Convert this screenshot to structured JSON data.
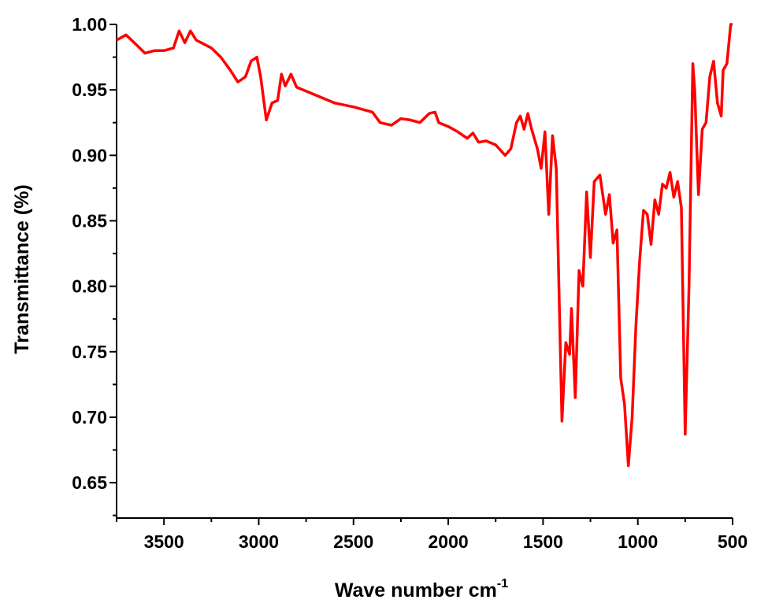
{
  "chart_data": {
    "type": "line",
    "xlabel": "Wave number cm",
    "xlabel_superscript": "-1",
    "ylabel": "Transmittance (%)",
    "color": "#ff0000",
    "xlim": [
      3750,
      500
    ],
    "ylim": [
      0.623,
      1.0
    ],
    "xticks": [
      3500,
      3000,
      2500,
      2000,
      1500,
      1000,
      500
    ],
    "xticks_minor": [
      3750,
      3250,
      2750,
      2250,
      1750,
      1250,
      750
    ],
    "yticks": [
      {
        "value": 1.0,
        "label": "1.00"
      },
      {
        "value": 0.95,
        "label": "0.95"
      },
      {
        "value": 0.9,
        "label": "0.90"
      },
      {
        "value": 0.85,
        "label": "0.85"
      },
      {
        "value": 0.8,
        "label": "0.80"
      },
      {
        "value": 0.75,
        "label": "0.75"
      },
      {
        "value": 0.7,
        "label": "0.70"
      },
      {
        "value": 0.65,
        "label": "0.65"
      }
    ],
    "yticks_minor": [
      0.975,
      0.925,
      0.875,
      0.825,
      0.775,
      0.725,
      0.675,
      0.625
    ],
    "x": [
      3750,
      3700,
      3650,
      3600,
      3550,
      3500,
      3450,
      3420,
      3390,
      3360,
      3330,
      3250,
      3200,
      3150,
      3110,
      3070,
      3040,
      3010,
      2990,
      2960,
      2930,
      2900,
      2880,
      2860,
      2830,
      2800,
      2700,
      2600,
      2500,
      2400,
      2360,
      2300,
      2250,
      2200,
      2150,
      2100,
      2070,
      2050,
      2000,
      1950,
      1900,
      1870,
      1840,
      1800,
      1750,
      1700,
      1670,
      1640,
      1620,
      1600,
      1580,
      1560,
      1530,
      1510,
      1490,
      1470,
      1450,
      1430,
      1410,
      1400,
      1380,
      1360,
      1350,
      1330,
      1310,
      1290,
      1270,
      1250,
      1230,
      1200,
      1170,
      1150,
      1130,
      1110,
      1090,
      1070,
      1050,
      1030,
      1010,
      990,
      970,
      950,
      930,
      910,
      890,
      870,
      850,
      830,
      810,
      790,
      770,
      750,
      730,
      710,
      700,
      680,
      660,
      640,
      620,
      600,
      580,
      560,
      550,
      530,
      510,
      500
    ],
    "values": [
      0.988,
      0.992,
      0.985,
      0.978,
      0.98,
      0.98,
      0.982,
      0.995,
      0.986,
      0.995,
      0.988,
      0.982,
      0.975,
      0.965,
      0.956,
      0.96,
      0.972,
      0.975,
      0.96,
      0.927,
      0.94,
      0.942,
      0.962,
      0.953,
      0.962,
      0.952,
      0.946,
      0.94,
      0.937,
      0.933,
      0.925,
      0.923,
      0.928,
      0.927,
      0.925,
      0.932,
      0.933,
      0.925,
      0.922,
      0.918,
      0.913,
      0.917,
      0.91,
      0.911,
      0.908,
      0.9,
      0.905,
      0.925,
      0.93,
      0.92,
      0.932,
      0.92,
      0.905,
      0.89,
      0.918,
      0.855,
      0.915,
      0.89,
      0.76,
      0.697,
      0.757,
      0.748,
      0.783,
      0.715,
      0.812,
      0.8,
      0.872,
      0.822,
      0.88,
      0.885,
      0.855,
      0.87,
      0.833,
      0.843,
      0.73,
      0.71,
      0.663,
      0.7,
      0.77,
      0.82,
      0.858,
      0.855,
      0.832,
      0.866,
      0.855,
      0.878,
      0.875,
      0.887,
      0.868,
      0.88,
      0.86,
      0.687,
      0.8,
      0.97,
      0.95,
      0.87,
      0.92,
      0.925,
      0.96,
      0.972,
      0.94,
      0.93,
      0.965,
      0.97,
      1.0,
      1.0
    ]
  }
}
